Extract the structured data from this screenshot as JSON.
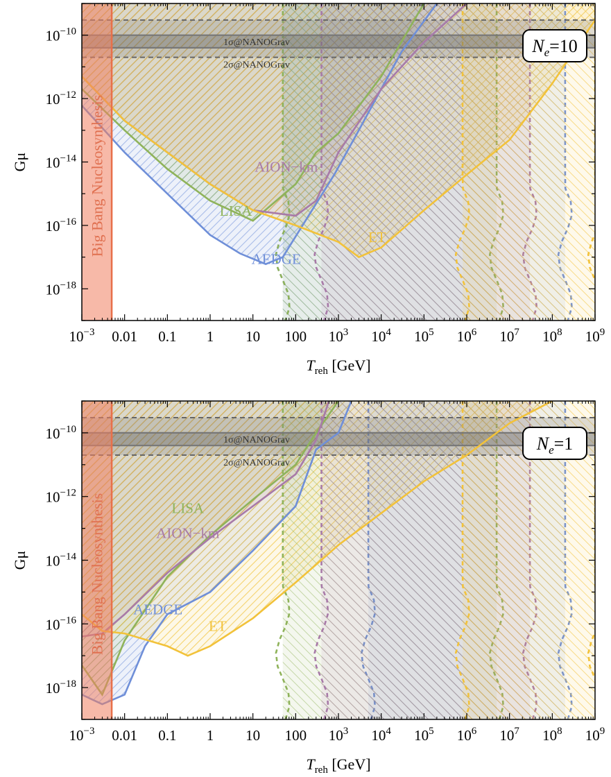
{
  "chart_data": [
    {
      "type": "area",
      "panel_label": "N_e=10",
      "ne_value": "10",
      "xlabel": "T_reh [GeV]",
      "ylabel": "Gμ",
      "xscale": "log",
      "yscale": "log",
      "xlim": [
        0.001,
        1000000000
      ],
      "ylim": [
        1e-19,
        1e-09
      ],
      "xtick_labels": [
        "10^-3",
        "0.01",
        "0.1",
        "1",
        "10",
        "100",
        "10^3",
        "10^4",
        "10^5",
        "10^6",
        "10^7",
        "10^8",
        "10^9"
      ],
      "ytick_labels": [
        "10^-10",
        "10^-12",
        "10^-14",
        "10^-16",
        "10^-18"
      ],
      "bbn_label": "Big Bang Nucleosynthesis",
      "bbn_xmax": 0.005,
      "nanograv": {
        "sigma1_label": "1σ@NANOGrav",
        "sigma2_label": "2σ@NANOGrav",
        "sigma1_range": [
          4e-11,
          1e-10
        ],
        "sigma2_range": [
          2e-11,
          3e-10
        ]
      },
      "series": [
        {
          "name": "AEDGE",
          "color": "#6f8fd8",
          "label_at": [
            35,
            6e-18
          ],
          "curve": [
            [
              0.001,
              6e-13
            ],
            [
              0.01,
              2e-14
            ],
            [
              0.1,
              1e-15
            ],
            [
              1,
              5e-17
            ],
            [
              5,
              1.3e-17
            ],
            [
              20,
              6e-18
            ],
            [
              50,
              1e-17
            ],
            [
              200,
              2e-16
            ],
            [
              800,
              4e-15
            ],
            [
              3000,
              1e-13
            ],
            [
              10000,
              2e-12
            ],
            [
              30000,
              3e-11
            ],
            [
              200000,
              1e-09
            ]
          ],
          "cut_x": [
            50,
            200000000
          ]
        },
        {
          "name": "LISA",
          "color": "#8fb35a",
          "label_at": [
            4,
            2e-16
          ],
          "curve": [
            [
              0.001,
              2e-12
            ],
            [
              0.01,
              1e-13
            ],
            [
              0.1,
              6e-15
            ],
            [
              1,
              6e-16
            ],
            [
              10,
              1.4e-16
            ],
            [
              100,
              2e-15
            ],
            [
              300,
              2e-14
            ],
            [
              1000,
              8e-14
            ],
            [
              10000,
              5e-12
            ],
            [
              100000,
              1e-09
            ]
          ],
          "cut_x": [
            50,
            5000000
          ]
        },
        {
          "name": "AION−km",
          "color": "#a87aa8",
          "label_at": [
            60,
            5e-15
          ],
          "curve": [
            [
              0.001,
              5e-12
            ],
            [
              0.01,
              2e-13
            ],
            [
              0.1,
              2e-14
            ],
            [
              1,
              2e-15
            ],
            [
              10,
              3e-16
            ],
            [
              100,
              2e-16
            ],
            [
              300,
              6e-16
            ],
            [
              1000,
              2e-14
            ],
            [
              10000,
              2e-12
            ],
            [
              100000,
              6e-11
            ],
            [
              1000000,
              1e-09
            ]
          ],
          "cut_x": [
            400,
            30000000
          ]
        },
        {
          "name": "ET",
          "color": "#f2c23a",
          "label_at": [
            8000,
            3e-17
          ],
          "curve": [
            [
              0.001,
              5e-12
            ],
            [
              0.01,
              2e-13
            ],
            [
              0.1,
              2e-14
            ],
            [
              1,
              2e-15
            ],
            [
              10,
              3e-16
            ],
            [
              100,
              1e-16
            ],
            [
              1000,
              3e-17
            ],
            [
              3000,
              1e-17
            ],
            [
              10000,
              2e-17
            ],
            [
              100000,
              3e-16
            ],
            [
              1000000,
              4e-15
            ],
            [
              10000000,
              5e-14
            ],
            [
              100000000,
              3e-12
            ],
            [
              1000000000,
              3e-10
            ]
          ],
          "cut_x": [
            800000,
            1000000000
          ]
        }
      ]
    },
    {
      "type": "area",
      "panel_label": "N_e=1",
      "ne_value": "1",
      "xlabel": "T_reh [GeV]",
      "ylabel": "Gμ",
      "xscale": "log",
      "yscale": "log",
      "xlim": [
        0.001,
        1000000000
      ],
      "ylim": [
        1e-19,
        1e-09
      ],
      "xtick_labels": [
        "10^-3",
        "0.01",
        "0.1",
        "1",
        "10",
        "100",
        "10^3",
        "10^4",
        "10^5",
        "10^6",
        "10^7",
        "10^8",
        "10^9"
      ],
      "ytick_labels": [
        "10^-10",
        "10^-12",
        "10^-14",
        "10^-16",
        "10^-18"
      ],
      "bbn_label": "Big Bang Nucleosynthesis",
      "bbn_xmax": 0.005,
      "nanograv": {
        "sigma1_label": "1σ@NANOGrav",
        "sigma2_label": "2σ@NANOGrav",
        "sigma1_range": [
          4e-11,
          1e-10
        ],
        "sigma2_range": [
          2e-11,
          3e-10
        ]
      },
      "series": [
        {
          "name": "AEDGE",
          "color": "#6f8fd8",
          "label_at": [
            0.06,
            2e-16
          ],
          "curve": [
            [
              0.001,
              6e-19
            ],
            [
              0.003,
              3e-19
            ],
            [
              0.01,
              6e-19
            ],
            [
              0.03,
              2e-17
            ],
            [
              0.1,
              2e-16
            ],
            [
              1,
              1e-15
            ],
            [
              10,
              2e-14
            ],
            [
              100,
              5e-13
            ],
            [
              300,
              3e-11
            ],
            [
              1000,
              1e-10
            ],
            [
              2000,
              1e-09
            ]
          ],
          "cut_x": [
            5000,
            200000000
          ]
        },
        {
          "name": "LISA",
          "color": "#8fb35a",
          "label_at": [
            0.3,
            3e-13
          ],
          "curve": [
            [
              0.001,
              5e-18
            ],
            [
              0.003,
              6e-19
            ],
            [
              0.01,
              3e-17
            ],
            [
              0.1,
              3e-15
            ],
            [
              1,
              6e-14
            ],
            [
              10,
              8e-13
            ],
            [
              100,
              1e-11
            ],
            [
              300,
              1e-10
            ],
            [
              1000,
              1e-09
            ]
          ],
          "cut_x": [
            50,
            5000000
          ]
        },
        {
          "name": "AION−km",
          "color": "#a87aa8",
          "label_at": [
            0.3,
            5e-14
          ],
          "curve": [
            [
              0.001,
              4e-17
            ],
            [
              0.003,
              5e-17
            ],
            [
              0.01,
              2e-16
            ],
            [
              0.1,
              4e-15
            ],
            [
              1,
              5e-14
            ],
            [
              10,
              5e-13
            ],
            [
              100,
              5e-12
            ],
            [
              300,
              6e-11
            ],
            [
              600,
              1e-09
            ]
          ],
          "cut_x": [
            400,
            30000000
          ]
        },
        {
          "name": "ET",
          "color": "#f2c23a",
          "label_at": [
            1.5,
            6e-17
          ],
          "curve": [
            [
              0.001,
              2e-16
            ],
            [
              0.003,
              6e-17
            ],
            [
              0.01,
              5e-17
            ],
            [
              0.1,
              2e-17
            ],
            [
              0.3,
              1e-17
            ],
            [
              1,
              2e-17
            ],
            [
              10,
              1.5e-16
            ],
            [
              100,
              2e-15
            ],
            [
              1000,
              3e-14
            ],
            [
              10000,
              3e-13
            ],
            [
              100000,
              3e-12
            ],
            [
              1000000,
              2e-11
            ],
            [
              10000000,
              2e-10
            ],
            [
              100000000,
              1e-09
            ]
          ],
          "cut_x": [
            800000,
            1000000000
          ]
        }
      ]
    }
  ]
}
